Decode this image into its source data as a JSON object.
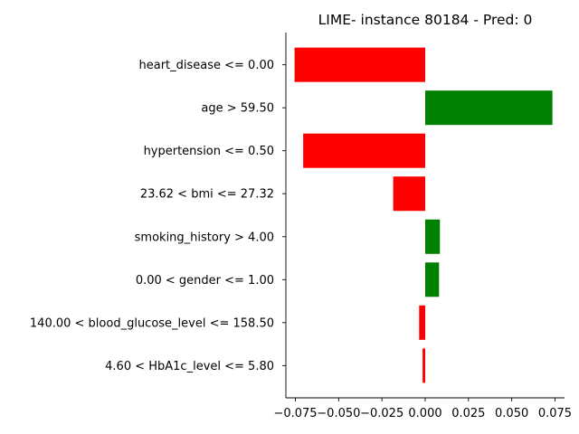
{
  "chart_data": {
    "type": "bar",
    "orientation": "horizontal",
    "title": "LIME- instance 80184 - Pred: 0",
    "xlabel": "",
    "ylabel": "",
    "categories": [
      "heart_disease <= 0.00",
      "age > 59.50",
      "hypertension <= 0.50",
      "23.62 < bmi <= 27.32",
      "smoking_history > 4.00",
      "0.00 < gender <= 1.00",
      "140.00 < blood_glucose_level <= 158.50",
      "4.60 < HbA1c_level <= 5.80"
    ],
    "values": [
      -0.0755,
      0.0735,
      -0.0705,
      -0.0185,
      0.0085,
      0.008,
      -0.0035,
      -0.0015
    ],
    "xlim": [
      -0.0805,
      0.0805
    ],
    "xticks": [
      -0.075,
      -0.05,
      -0.025,
      0.0,
      0.025,
      0.05,
      0.075
    ],
    "xtick_labels": [
      "−0.075",
      "−0.050",
      "−0.025",
      "0.000",
      "0.025",
      "0.050",
      "0.075"
    ],
    "colors": {
      "positive": "#008000",
      "negative": "#ff0000"
    },
    "grid": false,
    "legend": "none"
  }
}
